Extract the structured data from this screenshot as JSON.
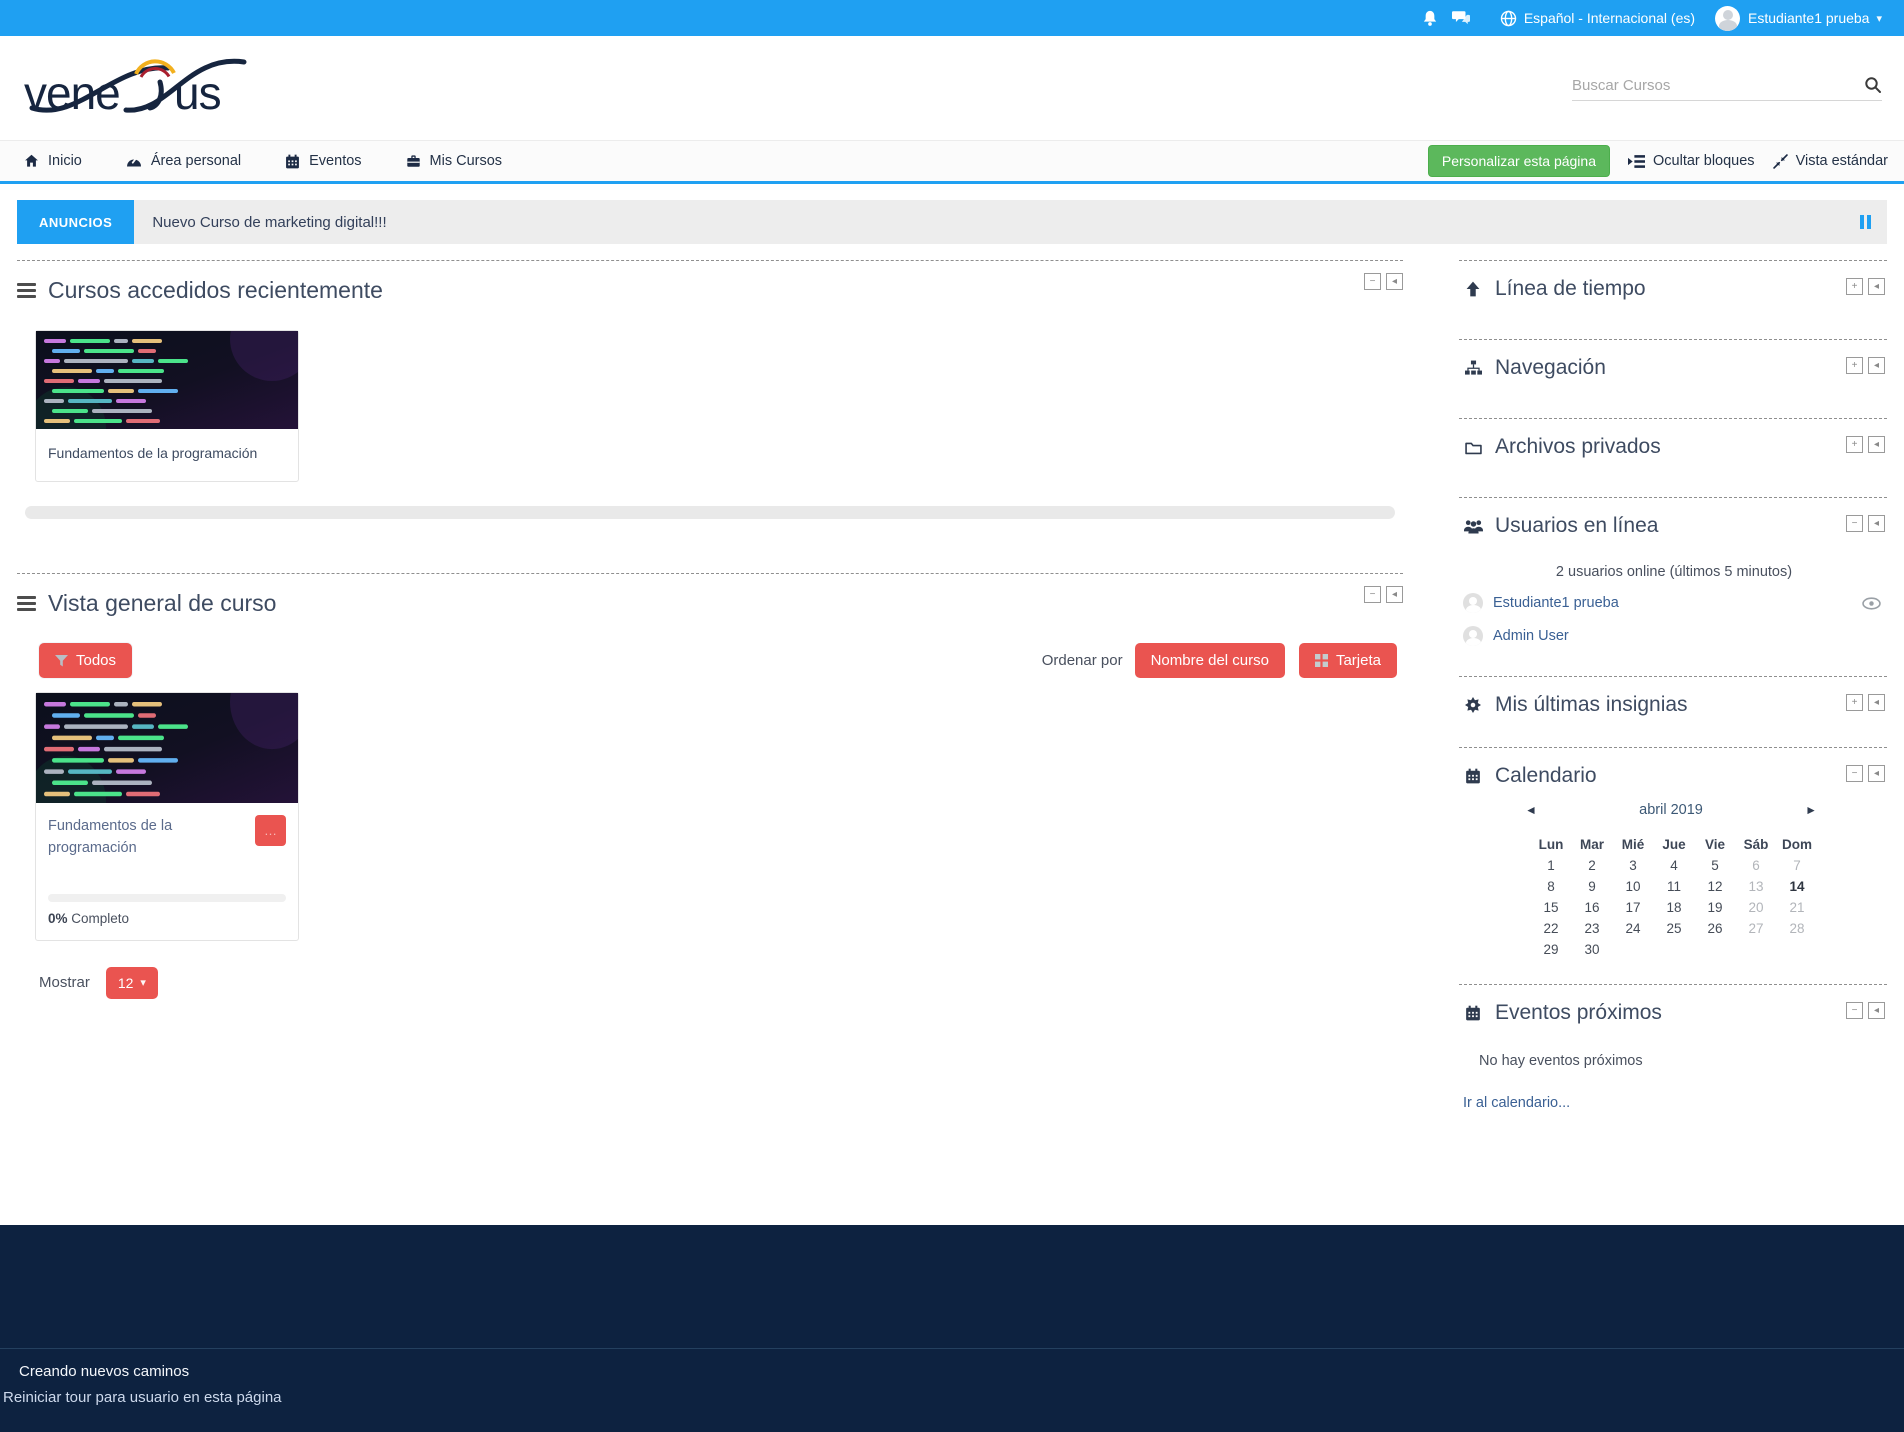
{
  "topbar": {
    "language": "Español - Internacional (es)",
    "user_name": "Estudiante1 prueba"
  },
  "header": {
    "logo_text": "venexus",
    "search_placeholder": "Buscar Cursos"
  },
  "nav": {
    "items": [
      {
        "label": "Inicio"
      },
      {
        "label": "Área personal"
      },
      {
        "label": "Eventos"
      },
      {
        "label": "Mis Cursos"
      }
    ],
    "customize_button": "Personalizar esta página",
    "hide_blocks": "Ocultar bloques",
    "standard_view": "Vista estándar"
  },
  "announcement": {
    "label": "ANUNCIOS",
    "message": "Nuevo Curso de marketing digital!!!"
  },
  "recent_courses": {
    "title": "Cursos accedidos recientemente",
    "course": {
      "title": "Fundamentos de la programación"
    }
  },
  "course_overview": {
    "title": "Vista general de curso",
    "filter_all": "Todos",
    "sort_by_label": "Ordenar por",
    "sort_name_button": "Nombre del curso",
    "card_button": "Tarjeta",
    "course": {
      "title": "Fundamentos de la programación",
      "progress_percent": "0%",
      "progress_text": "Completo"
    },
    "show_label": "Mostrar",
    "show_value": "12"
  },
  "sidebar": {
    "timeline": {
      "title": "Línea de tiempo"
    },
    "navigation": {
      "title": "Navegación"
    },
    "private_files": {
      "title": "Archivos privados"
    },
    "online_users": {
      "title": "Usuarios en línea",
      "status": "2 usuarios online (últimos 5 minutos)",
      "users": [
        {
          "name": "Estudiante1 prueba"
        },
        {
          "name": "Admin User"
        }
      ]
    },
    "badges": {
      "title": "Mis últimas insignias"
    },
    "calendar": {
      "title": "Calendario",
      "month": "abril 2019",
      "prev": "◄",
      "next": "►",
      "day_headers": [
        "Lun",
        "Mar",
        "Mié",
        "Jue",
        "Vie",
        "Sáb",
        "Dom"
      ],
      "weeks": [
        [
          {
            "t": "1"
          },
          {
            "t": "2"
          },
          {
            "t": "3"
          },
          {
            "t": "4"
          },
          {
            "t": "5"
          },
          {
            "t": "6",
            "c": "dim"
          },
          {
            "t": "7",
            "c": "dim"
          }
        ],
        [
          {
            "t": "8"
          },
          {
            "t": "9"
          },
          {
            "t": "10"
          },
          {
            "t": "11"
          },
          {
            "t": "12"
          },
          {
            "t": "13",
            "c": "dim"
          },
          {
            "t": "14",
            "c": "today"
          }
        ],
        [
          {
            "t": "15"
          },
          {
            "t": "16"
          },
          {
            "t": "17"
          },
          {
            "t": "18"
          },
          {
            "t": "19"
          },
          {
            "t": "20",
            "c": "dim"
          },
          {
            "t": "21",
            "c": "dim"
          }
        ],
        [
          {
            "t": "22"
          },
          {
            "t": "23"
          },
          {
            "t": "24"
          },
          {
            "t": "25"
          },
          {
            "t": "26"
          },
          {
            "t": "27",
            "c": "dim"
          },
          {
            "t": "28",
            "c": "dim"
          }
        ],
        [
          {
            "t": "29"
          },
          {
            "t": "30"
          },
          {
            "t": ""
          },
          {
            "t": ""
          },
          {
            "t": ""
          },
          {
            "t": ""
          },
          {
            "t": ""
          }
        ]
      ]
    },
    "upcoming_events": {
      "title": "Eventos próximos",
      "empty_text": "No hay eventos próximos",
      "link_text": "Ir al calendario..."
    }
  },
  "footer": {
    "tagline": "Creando nuevos caminos",
    "tour_link": "Reiniciar tour para usuario en esta página"
  },
  "glyphs": {
    "plus": "+",
    "minus": "−",
    "move": "◂",
    "caret_down": "▾",
    "ellipsis": "…"
  },
  "colors": {
    "primary_blue": "#1fa0f2",
    "green": "#5cb85c",
    "red": "#ea5450",
    "footer_navy": "#0d2240",
    "link_blue": "#3a6094"
  }
}
